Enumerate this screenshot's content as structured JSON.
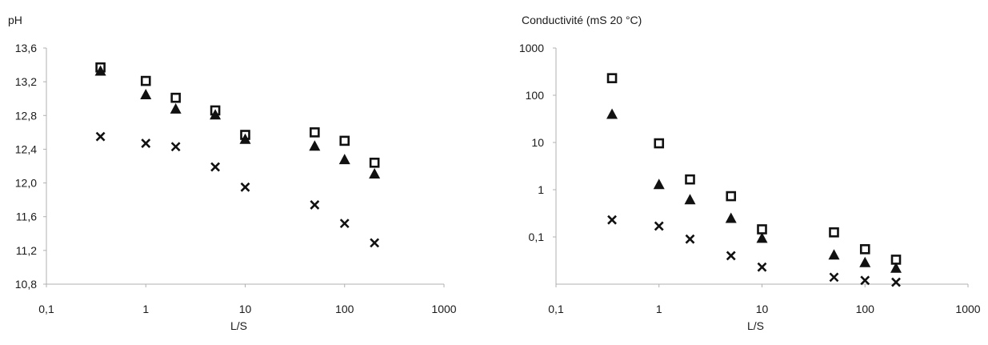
{
  "chart_data": [
    {
      "type": "scatter",
      "title": "",
      "ylabel": "pH",
      "xlabel": "L/S",
      "xscale": "log",
      "yscale": "linear",
      "xlim": [
        0.1,
        1000
      ],
      "ylim": [
        10.8,
        13.6
      ],
      "grid": false,
      "xticks": [
        {
          "value": 0.1,
          "label": "0,1"
        },
        {
          "value": 1,
          "label": "1"
        },
        {
          "value": 10,
          "label": "10"
        },
        {
          "value": 100,
          "label": "100"
        },
        {
          "value": 1000,
          "label": "1000"
        }
      ],
      "yticks": [
        {
          "value": 10.8,
          "label": "10,8"
        },
        {
          "value": 11.2,
          "label": "11,2"
        },
        {
          "value": 11.6,
          "label": "11,6"
        },
        {
          "value": 12.0,
          "label": "12,0"
        },
        {
          "value": 12.4,
          "label": "12,4"
        },
        {
          "value": 12.8,
          "label": "12,8"
        },
        {
          "value": 13.2,
          "label": "13,2"
        },
        {
          "value": 13.6,
          "label": "13,6"
        }
      ],
      "series": [
        {
          "marker": "square",
          "x": [
            0.35,
            1,
            2,
            5,
            10,
            50,
            100,
            200
          ],
          "y": [
            13.37,
            13.21,
            13.01,
            12.86,
            12.57,
            12.6,
            12.5,
            12.24
          ]
        },
        {
          "marker": "triangle",
          "x": [
            0.35,
            1,
            2,
            5,
            10,
            50,
            100,
            200
          ],
          "y": [
            13.33,
            13.05,
            12.88,
            12.81,
            12.52,
            12.44,
            12.28,
            12.11
          ]
        },
        {
          "marker": "cross",
          "x": [
            0.35,
            1,
            2,
            5,
            10,
            50,
            100,
            200
          ],
          "y": [
            12.55,
            12.47,
            12.43,
            12.19,
            11.95,
            11.74,
            11.52,
            11.29
          ]
        }
      ]
    },
    {
      "type": "scatter",
      "title": "",
      "ylabel": "Conductivité (mS 20 °C)",
      "xlabel": "L/S",
      "xscale": "log",
      "yscale": "log",
      "xlim": [
        0.1,
        1000
      ],
      "ylim": [
        0.01,
        1000
      ],
      "grid": false,
      "xticks": [
        {
          "value": 0.1,
          "label": "0,1"
        },
        {
          "value": 1,
          "label": "1"
        },
        {
          "value": 10,
          "label": "10"
        },
        {
          "value": 100,
          "label": "100"
        },
        {
          "value": 1000,
          "label": "1000"
        }
      ],
      "yticks": [
        {
          "value": 0.1,
          "label": "0,1"
        },
        {
          "value": 1,
          "label": "1"
        },
        {
          "value": 10,
          "label": "10"
        },
        {
          "value": 100,
          "label": "100"
        },
        {
          "value": 1000,
          "label": "1000"
        }
      ],
      "series": [
        {
          "marker": "square",
          "x": [
            0.35,
            1,
            2,
            5,
            10,
            50,
            100,
            200
          ],
          "y": [
            230,
            9.6,
            1.65,
            0.73,
            0.145,
            0.125,
            0.055,
            0.033
          ]
        },
        {
          "marker": "triangle",
          "x": [
            0.35,
            1,
            2,
            5,
            10,
            50,
            100,
            200
          ],
          "y": [
            40,
            1.3,
            0.62,
            0.25,
            0.095,
            0.042,
            0.029,
            0.022
          ]
        },
        {
          "marker": "cross",
          "x": [
            0.35,
            1,
            2,
            5,
            10,
            50,
            100,
            200
          ],
          "y": [
            0.23,
            0.17,
            0.09,
            0.04,
            0.023,
            0.014,
            0.012,
            0.011
          ]
        }
      ]
    }
  ]
}
